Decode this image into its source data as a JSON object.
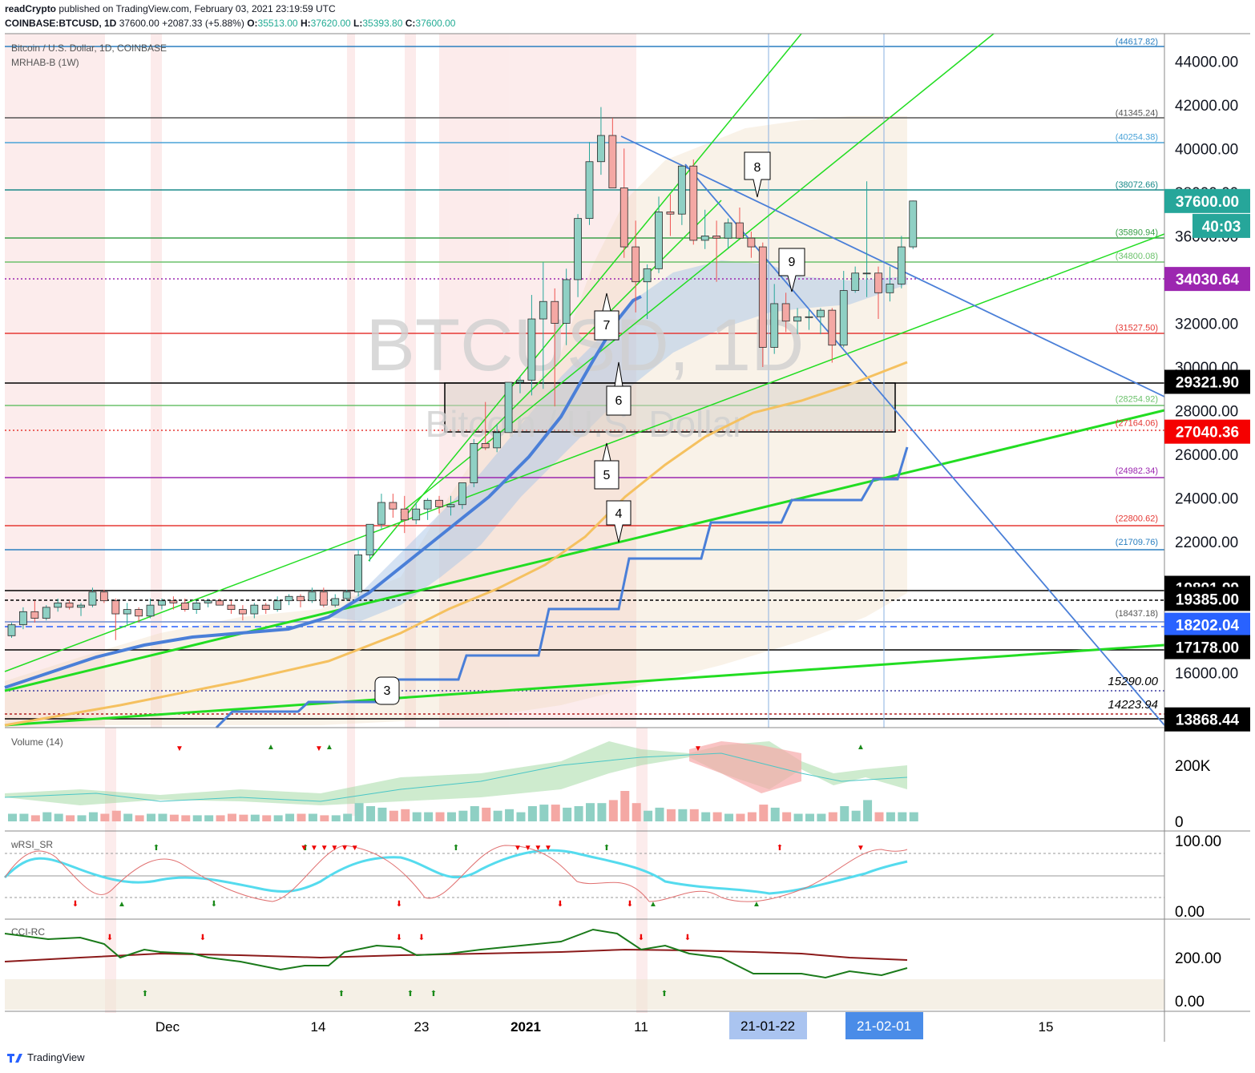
{
  "header": {
    "author": "readCrypto",
    "published_text": "published on TradingView.com, February 03, 2021 23:19:59 UTC",
    "symbol": "COINBASE:BTCUSD, 1D",
    "last": "37600.00",
    "change": "+2087.33 (+5.88%)",
    "o_label": "O:",
    "o": "35513.00",
    "h_label": "H:",
    "h": "37620.00",
    "l_label": "L:",
    "l": "35393.80",
    "c_label": "C:",
    "c": "37600.00"
  },
  "legend": {
    "symbol_desc": "Bitcoin / U.S. Dollar, 1D, COINBASE",
    "indicator": "MRHAB-B (1W)"
  },
  "watermark": {
    "line1": "BTCUSD, 1D",
    "line2": "Bitcoin / U.S. Dollar"
  },
  "level_labels": [
    "(44617.82)",
    "(41345.24)",
    "(40254.38)",
    "(38072.66)",
    "(35890.94)",
    "(34800.08)",
    "(31527.50)",
    "(28254.92)",
    "(27164.06)",
    "(24982.34)",
    "(22800.62)",
    "(21709.76)",
    "(18437.18)",
    "15290.00",
    "14223.94"
  ],
  "price_badges": [
    {
      "text": "37600.00",
      "color": "#26a69a"
    },
    {
      "text": "40:03",
      "color": "#26a69a"
    },
    {
      "text": "34030.64",
      "color": "#9c27b0"
    },
    {
      "text": "29321.90",
      "color": "#000000"
    },
    {
      "text": "27040.36",
      "color": "#f50000"
    },
    {
      "text": "19891.99",
      "color": "#000000"
    },
    {
      "text": "19385.00",
      "color": "#000000"
    },
    {
      "text": "18202.04",
      "color": "#2962ff"
    },
    {
      "text": "17178.00",
      "color": "#000000"
    },
    {
      "text": "13868.44",
      "color": "#000000"
    }
  ],
  "price_axis": [
    "44000.00",
    "42000.00",
    "40000.00",
    "38000.00",
    "36000.00",
    "34000.00",
    "32000.00",
    "30000.00",
    "28000.00",
    "26000.00",
    "24000.00",
    "22000.00",
    "20000.00",
    "18000.00",
    "16000.00"
  ],
  "callouts": [
    "3",
    "4",
    "5",
    "6",
    "7",
    "8",
    "9"
  ],
  "panes": {
    "volume": {
      "title": "Volume (14)",
      "axis": [
        "200K",
        "0"
      ]
    },
    "wrsi": {
      "title": "wRSI_SR",
      "axis": [
        "100.00",
        "0.00"
      ]
    },
    "cci": {
      "title": "CCI-RC",
      "axis": [
        "200.00",
        "0.00"
      ]
    }
  },
  "time_axis": [
    "Dec",
    "14",
    "23",
    "2021",
    "11",
    "15"
  ],
  "time_badges": [
    "21-01-22",
    "21-02-01"
  ],
  "footer": {
    "brand": "TradingView"
  },
  "colors": {
    "up": "#26a69a",
    "down": "#ef5350",
    "green_line": "#22dd22",
    "blue_line": "#4a7fd8",
    "orange_ma": "#f5c160"
  }
}
